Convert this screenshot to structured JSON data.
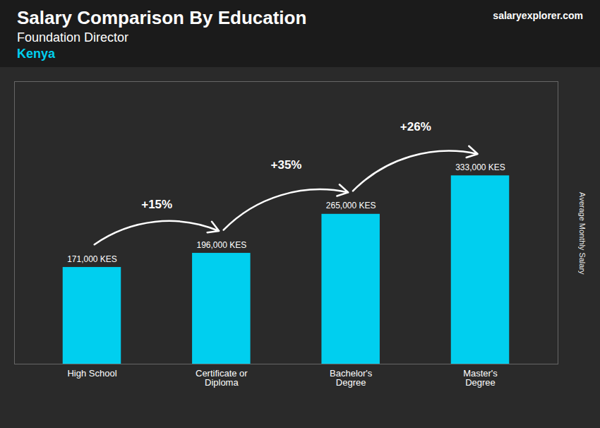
{
  "chart_data": {
    "type": "bar",
    "title": "Salary Comparison By Education",
    "subtitle": "Foundation Director",
    "ylabel": "Average Monthly Salary",
    "categories": [
      "High School",
      "Certificate or\nDiploma",
      "Bachelor's\nDegree",
      "Master's\nDegree"
    ],
    "values": [
      171000,
      196000,
      265000,
      333000
    ],
    "value_labels": [
      "171,000 KES",
      "196,000 KES",
      "265,000 KES",
      "333,000 KES"
    ],
    "data_labels": true,
    "color": "#00CFEF",
    "ylim": [
      0,
      499500
    ],
    "tick_labels": "x",
    "grid": false,
    "annotations": [
      {
        "text": "Kenya"
      },
      {
        "text": "salaryexplorer.com"
      },
      {
        "text": "+15%",
        "from": "High School",
        "to": "Certificate or\nDiploma"
      },
      {
        "text": "+35%",
        "from": "Certificate or\nDiploma",
        "to": "Bachelor's\nDegree"
      },
      {
        "text": "+26%",
        "from": "Bachelor's\nDegree",
        "to": "Master's\nDegree"
      }
    ]
  }
}
